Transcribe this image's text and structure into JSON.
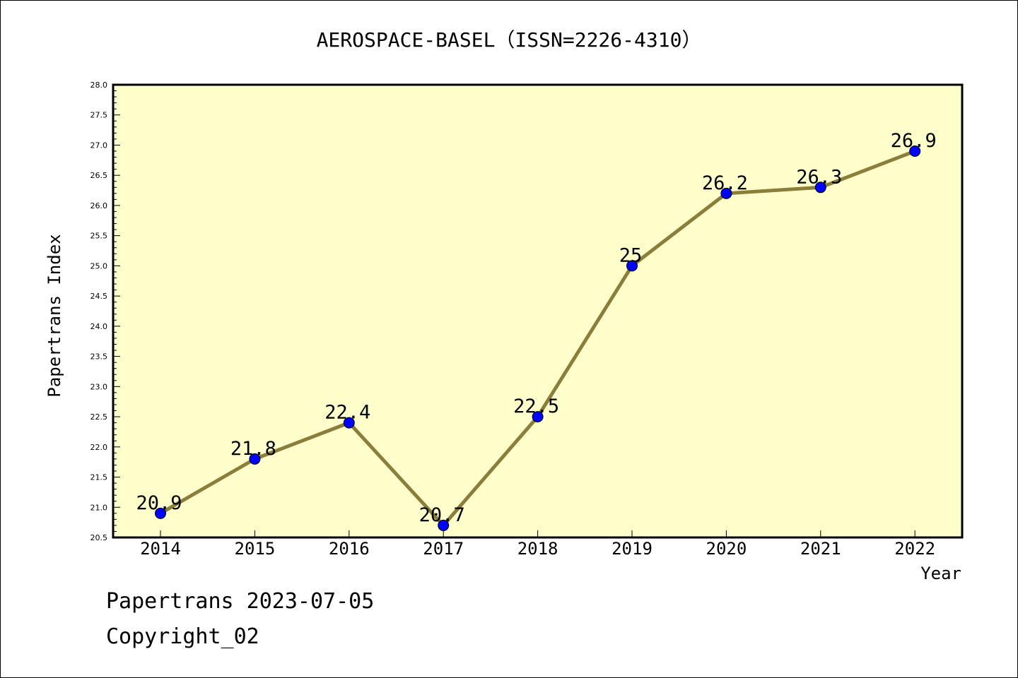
{
  "colors": {
    "plot_background": "#ffffcc",
    "line": "#8b7d3a",
    "marker": "#0000ff",
    "frame": "#000000"
  },
  "footer": {
    "line1": "Papertrans 2023-07-05",
    "line2": "Copyright_02"
  },
  "chart_data": {
    "type": "line",
    "title": "AEROSPACE-BASEL（ISSN=2226-4310）",
    "xlabel": "Year",
    "ylabel": "Papertrans Index",
    "categories": [
      "2014",
      "2015",
      "2016",
      "2017",
      "2018",
      "2019",
      "2020",
      "2021",
      "2022"
    ],
    "ylim": [
      20.5,
      28.0
    ],
    "yticks": [
      "20.5",
      "21.0",
      "21.5",
      "22.0",
      "22.5",
      "23.0",
      "23.5",
      "24.0",
      "24.5",
      "25.0",
      "25.5",
      "26.0",
      "26.5",
      "27.0",
      "27.5",
      "28.0"
    ],
    "grid": false,
    "series": [
      {
        "values": [
          20.9,
          21.8,
          22.4,
          20.7,
          22.5,
          25.0,
          26.2,
          26.3,
          26.9
        ],
        "labels": [
          "20.9",
          "21.8",
          "22.4",
          "20.7",
          "22.5",
          "25",
          "26.2",
          "26.3",
          "26.9"
        ]
      }
    ]
  }
}
